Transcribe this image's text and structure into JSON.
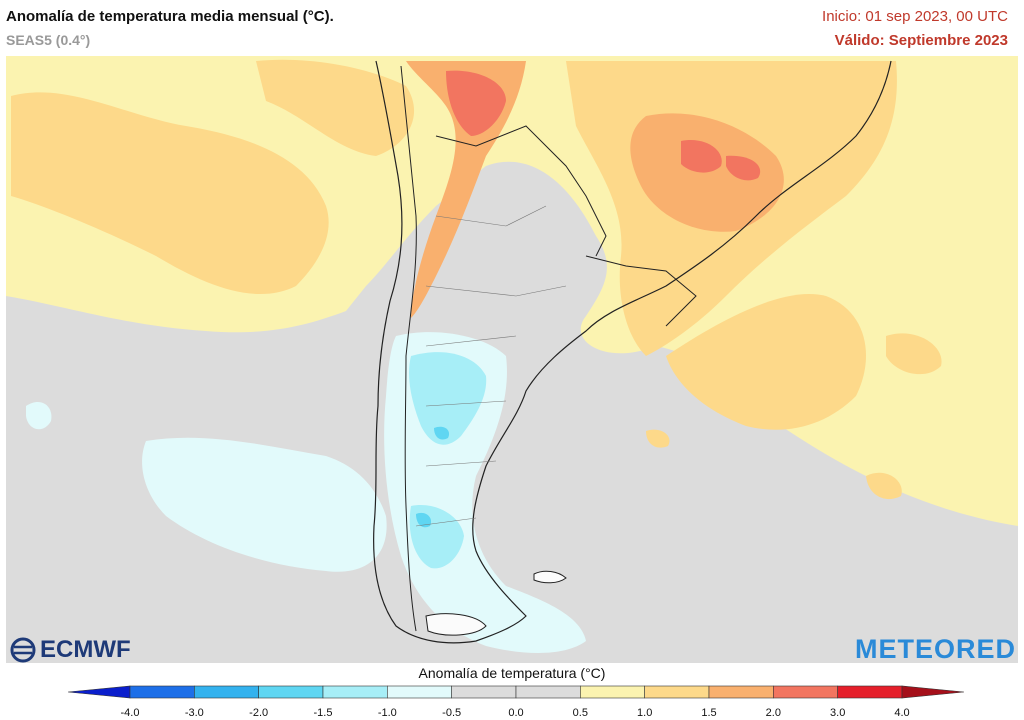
{
  "header": {
    "title": "Anomalía de temperatura media mensual (°C).",
    "model": "SEAS5 (0.4°)",
    "init": "Inicio: 01 sep 2023, 00 UTC",
    "valid": "Válido: Septiembre 2023"
  },
  "logos": {
    "left": "ECMWF",
    "right": "METEORED"
  },
  "colorbar": {
    "title": "Anomalía de temperatura (°C)",
    "ticks": [
      "-4.0",
      "-3.0",
      "-2.0",
      "-1.5",
      "-1.0",
      "-0.5",
      "0.0",
      "0.5",
      "1.0",
      "1.5",
      "2.0",
      "3.0",
      "4.0"
    ],
    "colors": [
      "#0a1ecc",
      "#1d6fe8",
      "#33b2ee",
      "#5fd6f2",
      "#a7eef7",
      "#e2fafb",
      "#dcdcdc",
      "#dcdcdc",
      "#fbf3b0",
      "#fdd98a",
      "#f9b06e",
      "#f27560",
      "#e51f2a",
      "#a50f1a"
    ]
  },
  "map": {
    "region": "South America — Argentina / Chile / Uruguay / southern Brazil",
    "colors": {
      "neutral": "#dcdcdc",
      "warm1": "#fbf3b0",
      "warm2": "#fdd98a",
      "warm3": "#f9b06e",
      "warm4": "#f27560",
      "cool1": "#e2fafb",
      "cool2": "#a7eef7",
      "cool3": "#5fd6f2",
      "cool4": "#1d6fe8",
      "border": "#222222",
      "province": "#777777"
    }
  }
}
